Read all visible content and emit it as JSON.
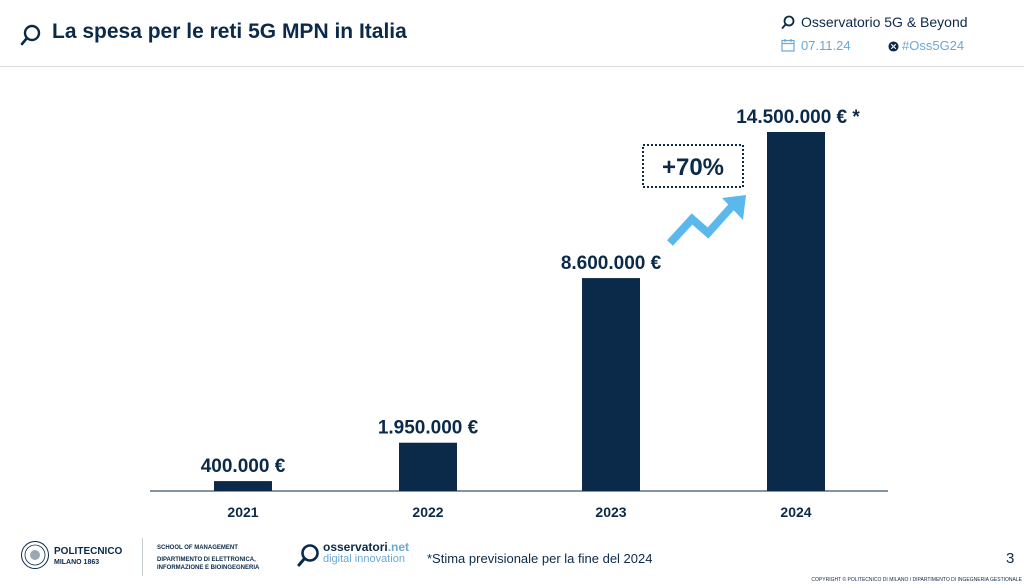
{
  "header": {
    "title": "La spesa per le reti 5G MPN in Italia",
    "brand": "Osservatorio 5G & Beyond",
    "date": "07.11.24",
    "hashtag": "#Oss5G24"
  },
  "chart_data": {
    "type": "bar",
    "categories": [
      "2021",
      "2022",
      "2023",
      "2024"
    ],
    "values": [
      400000,
      1950000,
      8600000,
      14500000
    ],
    "value_labels": [
      "400.000 €",
      "1.950.000 €",
      "8.600.000 €",
      "14.500.000 € *"
    ],
    "annotation": "+70%",
    "bar_color": "#0b2a4a",
    "arrow_color": "#5bb8ec",
    "title": "",
    "xlabel": "",
    "ylabel": "",
    "grid": false
  },
  "footer": {
    "polimi_name": "POLITECNICO",
    "polimi_sub": "MILANO 1863",
    "school_line1": "SCHOOL OF MANAGEMENT",
    "school_line2": "DIPARTIMENTO DI ELETTRONICA,",
    "school_line3": "INFORMAZIONE E BIOINGEGNERIA",
    "oss_name": "osservatori",
    "oss_net": ".net",
    "oss_sub": "digital innovation",
    "note": "*Stima previsionale per la fine del 2024",
    "page_number": "3",
    "copyright": "COPYRIGHT © POLITECNICO DI MILANO / DIPARTIMENTO DI INGEGNERIA GESTIONALE"
  }
}
